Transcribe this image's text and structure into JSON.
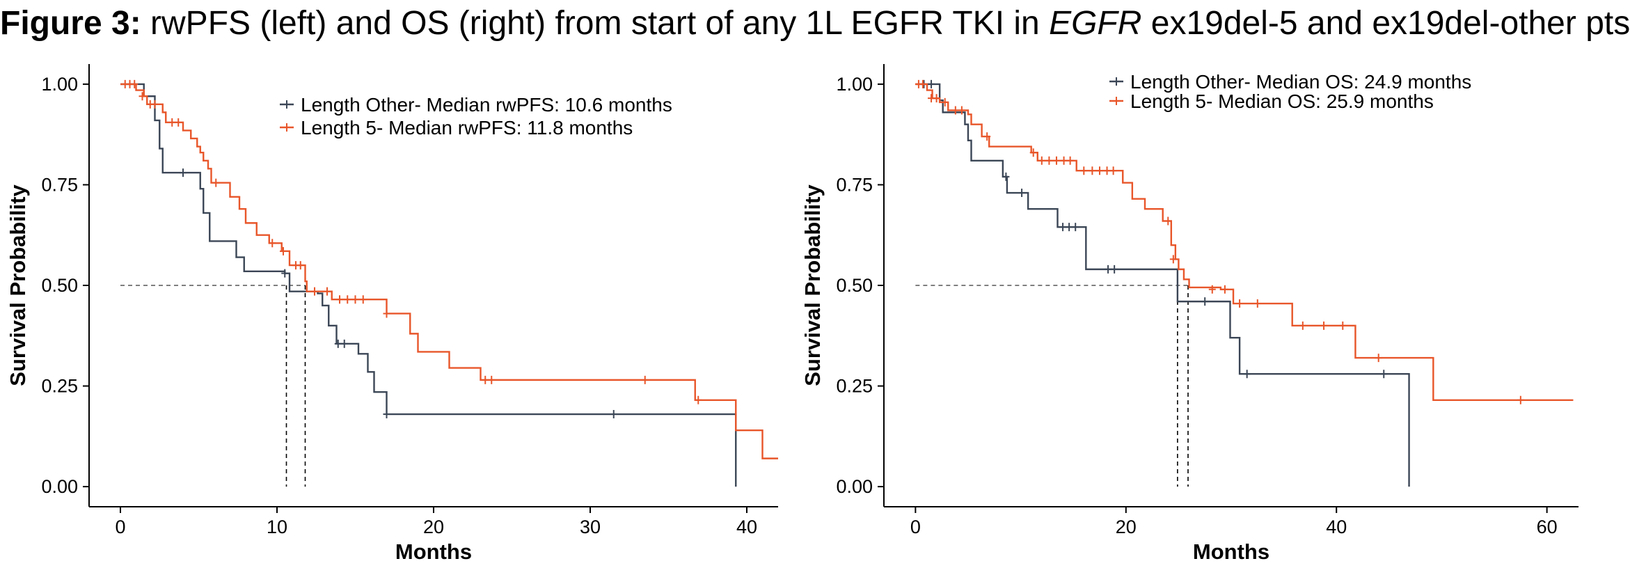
{
  "figure": {
    "label": "Figure 3:",
    "text_a": " rwPFS (left) and OS (right) from start of any 1L EGFR TKI in ",
    "gene": "EGFR",
    "text_b": " ex19del-5 and ex19del-other pts"
  },
  "colors": {
    "other": "#3b4656",
    "five": "#e8562a",
    "axis": "#000000",
    "ref": "#555555"
  },
  "chart_data": [
    {
      "type": "line",
      "subtype": "kaplan-meier",
      "xlabel": "Months",
      "ylabel": "Survival Probability",
      "xlim": [
        -2,
        42
      ],
      "ylim": [
        -0.05,
        1.05
      ],
      "xticks": [
        0,
        10,
        20,
        30,
        40
      ],
      "xtick_labels": [
        "0",
        "10",
        "20",
        "30",
        "40"
      ],
      "yticks": [
        0,
        0.25,
        0.5,
        0.75,
        1
      ],
      "ytick_labels": [
        "0.00",
        "0.25",
        "0.50",
        "0.75",
        "1.00"
      ],
      "median_line": 0.5,
      "medians": [
        10.6,
        11.8
      ],
      "legend_position": "top-center",
      "series": [
        {
          "name": "Length Other- Median rwPFS: 10.6 months",
          "color_key": "other",
          "steps": [
            [
              0,
              1.0
            ],
            [
              1.5,
              0.97
            ],
            [
              2.2,
              0.91
            ],
            [
              2.5,
              0.84
            ],
            [
              2.7,
              0.78
            ],
            [
              5.1,
              0.74
            ],
            [
              5.3,
              0.68
            ],
            [
              5.7,
              0.61
            ],
            [
              7.4,
              0.57
            ],
            [
              7.9,
              0.535
            ],
            [
              10.5,
              0.53
            ],
            [
              10.8,
              0.485
            ],
            [
              12.6,
              0.48
            ],
            [
              12.9,
              0.45
            ],
            [
              13.3,
              0.4
            ],
            [
              13.8,
              0.355
            ],
            [
              15.2,
              0.33
            ],
            [
              15.8,
              0.285
            ],
            [
              16.2,
              0.235
            ],
            [
              17.0,
              0.18
            ],
            [
              39.3,
              0.18
            ],
            [
              39.3,
              0.0
            ]
          ],
          "censor": [
            [
              4,
              0.78
            ],
            [
              10.5,
              0.53
            ],
            [
              13.9,
              0.355
            ],
            [
              14.3,
              0.355
            ],
            [
              17.0,
              0.18
            ],
            [
              31.5,
              0.18
            ]
          ]
        },
        {
          "name": "Length 5- Median rwPFS: 11.8 months",
          "color_key": "five",
          "steps": [
            [
              0,
              1.0
            ],
            [
              1.0,
              0.985
            ],
            [
              1.5,
              0.97
            ],
            [
              1.7,
              0.95
            ],
            [
              2.7,
              0.93
            ],
            [
              2.9,
              0.905
            ],
            [
              4.0,
              0.885
            ],
            [
              4.5,
              0.865
            ],
            [
              4.9,
              0.845
            ],
            [
              5.1,
              0.83
            ],
            [
              5.3,
              0.81
            ],
            [
              5.6,
              0.79
            ],
            [
              5.8,
              0.755
            ],
            [
              7.0,
              0.72
            ],
            [
              7.6,
              0.69
            ],
            [
              8.0,
              0.655
            ],
            [
              8.7,
              0.625
            ],
            [
              9.5,
              0.605
            ],
            [
              10.3,
              0.585
            ],
            [
              10.8,
              0.55
            ],
            [
              11.8,
              0.51
            ],
            [
              11.9,
              0.485
            ],
            [
              13.0,
              0.485
            ],
            [
              13.5,
              0.465
            ],
            [
              17.0,
              0.43
            ],
            [
              18.5,
              0.38
            ],
            [
              19.0,
              0.335
            ],
            [
              21.0,
              0.295
            ],
            [
              23.0,
              0.265
            ],
            [
              36.7,
              0.265
            ],
            [
              36.7,
              0.215
            ],
            [
              39.3,
              0.215
            ],
            [
              39.3,
              0.14
            ],
            [
              41.0,
              0.14
            ],
            [
              41.0,
              0.07
            ],
            [
              42.0,
              0.07
            ]
          ],
          "censor": [
            [
              0.3,
              1.0
            ],
            [
              0.6,
              1.0
            ],
            [
              0.9,
              1.0
            ],
            [
              1.4,
              0.97
            ],
            [
              1.9,
              0.95
            ],
            [
              2.2,
              0.95
            ],
            [
              3.3,
              0.905
            ],
            [
              3.7,
              0.905
            ],
            [
              6.1,
              0.755
            ],
            [
              9.7,
              0.605
            ],
            [
              10.4,
              0.585
            ],
            [
              11.2,
              0.55
            ],
            [
              11.5,
              0.55
            ],
            [
              12.4,
              0.485
            ],
            [
              13.2,
              0.485
            ],
            [
              14.0,
              0.465
            ],
            [
              14.5,
              0.465
            ],
            [
              15.0,
              0.465
            ],
            [
              15.5,
              0.465
            ],
            [
              17.0,
              0.43
            ],
            [
              23.3,
              0.265
            ],
            [
              23.7,
              0.265
            ],
            [
              33.5,
              0.265
            ],
            [
              36.9,
              0.215
            ]
          ]
        }
      ]
    },
    {
      "type": "line",
      "subtype": "kaplan-meier",
      "xlabel": "Months",
      "ylabel": "Survival Probability",
      "xlim": [
        -3,
        63
      ],
      "ylim": [
        -0.05,
        1.05
      ],
      "xticks": [
        0,
        20,
        40,
        60
      ],
      "xtick_labels": [
        "0",
        "20",
        "40",
        "60"
      ],
      "yticks": [
        0,
        0.25,
        0.5,
        0.75,
        1
      ],
      "ytick_labels": [
        "0.00",
        "0.25",
        "0.50",
        "0.75",
        "1.00"
      ],
      "median_line": 0.5,
      "medians": [
        24.9,
        25.9
      ],
      "legend_position": "top-center",
      "series": [
        {
          "name": "Length Other- Median OS: 24.9 months",
          "color_key": "other",
          "steps": [
            [
              0,
              1.0
            ],
            [
              2.3,
              0.96
            ],
            [
              2.6,
              0.93
            ],
            [
              4.7,
              0.9
            ],
            [
              5.0,
              0.86
            ],
            [
              5.3,
              0.81
            ],
            [
              8.3,
              0.77
            ],
            [
              8.7,
              0.73
            ],
            [
              10.7,
              0.69
            ],
            [
              13.5,
              0.645
            ],
            [
              16.2,
              0.54
            ],
            [
              24.9,
              0.46
            ],
            [
              29.9,
              0.37
            ],
            [
              30.8,
              0.28
            ],
            [
              46.9,
              0.28
            ],
            [
              46.9,
              0.0
            ]
          ],
          "censor": [
            [
              0.8,
              1.0
            ],
            [
              1.5,
              1.0
            ],
            [
              8.6,
              0.77
            ],
            [
              10.1,
              0.73
            ],
            [
              14.0,
              0.645
            ],
            [
              14.6,
              0.645
            ],
            [
              15.2,
              0.645
            ],
            [
              18.3,
              0.54
            ],
            [
              18.9,
              0.54
            ],
            [
              27.5,
              0.46
            ],
            [
              31.5,
              0.28
            ],
            [
              44.5,
              0.28
            ]
          ]
        },
        {
          "name": "Length 5- Median OS: 25.9 months",
          "color_key": "five",
          "steps": [
            [
              0,
              1.0
            ],
            [
              1.1,
              0.985
            ],
            [
              1.6,
              0.965
            ],
            [
              2.3,
              0.955
            ],
            [
              3.1,
              0.935
            ],
            [
              5.0,
              0.925
            ],
            [
              5.3,
              0.9
            ],
            [
              6.3,
              0.87
            ],
            [
              7.0,
              0.845
            ],
            [
              11.0,
              0.83
            ],
            [
              11.6,
              0.81
            ],
            [
              15.3,
              0.785
            ],
            [
              19.7,
              0.755
            ],
            [
              20.6,
              0.715
            ],
            [
              21.8,
              0.69
            ],
            [
              23.5,
              0.66
            ],
            [
              24.3,
              0.6
            ],
            [
              24.7,
              0.565
            ],
            [
              25.0,
              0.54
            ],
            [
              25.5,
              0.515
            ],
            [
              26.0,
              0.495
            ],
            [
              29.0,
              0.49
            ],
            [
              30.2,
              0.455
            ],
            [
              35.8,
              0.4
            ],
            [
              41.8,
              0.32
            ],
            [
              49.2,
              0.215
            ],
            [
              62.5,
              0.215
            ]
          ],
          "censor": [
            [
              0.3,
              1.0
            ],
            [
              0.7,
              1.0
            ],
            [
              1.5,
              0.965
            ],
            [
              2.0,
              0.965
            ],
            [
              2.8,
              0.955
            ],
            [
              3.8,
              0.935
            ],
            [
              4.4,
              0.935
            ],
            [
              6.8,
              0.87
            ],
            [
              11.2,
              0.83
            ],
            [
              12.0,
              0.81
            ],
            [
              12.7,
              0.81
            ],
            [
              13.4,
              0.81
            ],
            [
              14.1,
              0.81
            ],
            [
              14.7,
              0.81
            ],
            [
              16.0,
              0.785
            ],
            [
              16.8,
              0.785
            ],
            [
              17.5,
              0.785
            ],
            [
              18.2,
              0.785
            ],
            [
              18.8,
              0.785
            ],
            [
              24.0,
              0.66
            ],
            [
              24.5,
              0.565
            ],
            [
              28.2,
              0.49
            ],
            [
              29.4,
              0.49
            ],
            [
              30.8,
              0.455
            ],
            [
              32.5,
              0.455
            ],
            [
              36.8,
              0.4
            ],
            [
              38.8,
              0.4
            ],
            [
              40.6,
              0.4
            ],
            [
              44.0,
              0.32
            ],
            [
              57.5,
              0.215
            ]
          ]
        }
      ]
    }
  ]
}
